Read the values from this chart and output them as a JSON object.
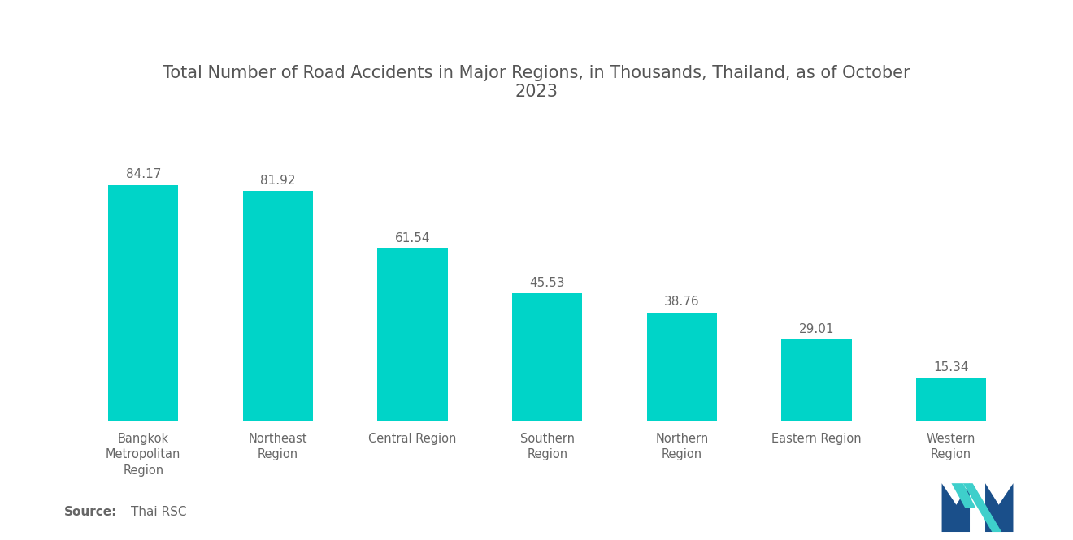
{
  "title": "Total Number of Road Accidents in Major Regions, in Thousands, Thailand, as of October\n2023",
  "categories": [
    "Bangkok\nMetropolitan\nRegion",
    "Northeast\nRegion",
    "Central Region",
    "Southern\nRegion",
    "Northern\nRegion",
    "Eastern Region",
    "Western\nRegion"
  ],
  "values": [
    84.17,
    81.92,
    61.54,
    45.53,
    38.76,
    29.01,
    15.34
  ],
  "bar_color": "#00D4C8",
  "background_color": "#FFFFFF",
  "title_color": "#555555",
  "label_color": "#666666",
  "value_color": "#666666",
  "ylim": [
    0,
    100
  ],
  "title_fontsize": 15,
  "label_fontsize": 10.5,
  "value_fontsize": 11,
  "source_fontsize": 11,
  "bar_width": 0.52
}
